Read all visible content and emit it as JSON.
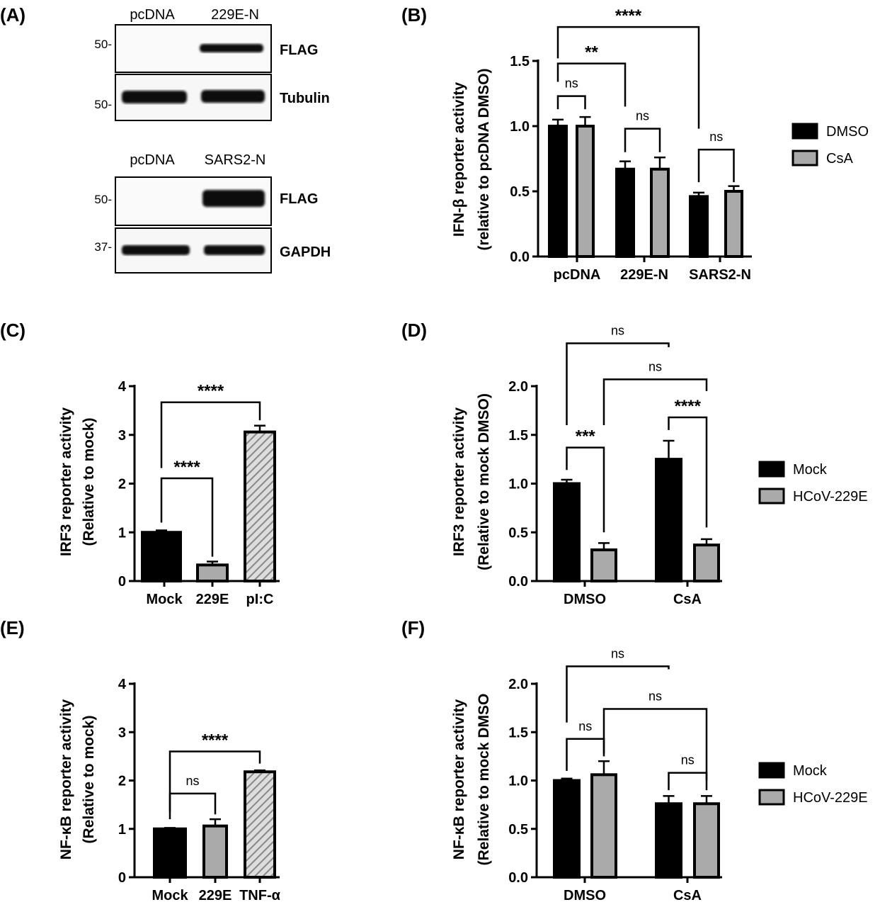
{
  "panel_labels": [
    "(A)",
    "(B)",
    "(C)",
    "(D)",
    "(E)",
    "(F)"
  ],
  "colors": {
    "black_bar": "#000000",
    "gray_bar": "#aaaaaa",
    "hatch": "#888888"
  },
  "western_blot": {
    "top": {
      "lanes": [
        "pcDNA",
        "229E-N"
      ],
      "markers": [
        "50-",
        "50-"
      ],
      "bands": [
        "FLAG",
        "Tubulin"
      ]
    },
    "bottom": {
      "lanes": [
        "pcDNA",
        "SARS2-N"
      ],
      "markers": [
        "50-",
        "37-"
      ],
      "bands": [
        "FLAG",
        "GAPDH"
      ]
    }
  },
  "chart_data": [
    {
      "id": "B",
      "type": "bar",
      "ylabel": [
        "IFN-β reporter activity",
        "(relative to pcDNA DMSO)"
      ],
      "ylim": [
        0,
        1.5
      ],
      "ticks": [
        "0.0",
        "0.5",
        "1.0",
        "1.5"
      ],
      "tick_values": [
        0,
        0.5,
        1.0,
        1.5
      ],
      "categories": [
        "pcDNA",
        "229E-N",
        "SARS2-N"
      ],
      "legend": [
        {
          "name": "DMSO",
          "color": "#000000"
        },
        {
          "name": "CsA",
          "color": "#aaaaaa"
        }
      ],
      "legend_placement": "right",
      "series": [
        {
          "name": "DMSO",
          "values": [
            1.0,
            0.67,
            0.46
          ],
          "errors": [
            0.05,
            0.06,
            0.03
          ]
        },
        {
          "name": "CsA",
          "values": [
            1.0,
            0.67,
            0.5
          ],
          "errors": [
            0.07,
            0.09,
            0.04
          ]
        }
      ],
      "brackets": [
        {
          "from": 0,
          "to": 1,
          "y": 1.23,
          "left": 1.13,
          "right": 1.13,
          "label": "ns"
        },
        {
          "from": 2,
          "to": 3,
          "y": 0.98,
          "left": 0.8,
          "right": 0.8,
          "label": "ns"
        },
        {
          "from": 4,
          "to": 5,
          "y": 0.82,
          "left": 0.57,
          "right": 0.57,
          "label": "ns"
        },
        {
          "from": 0,
          "to": 2,
          "y": 1.48,
          "left": 1.34,
          "right": 1.15,
          "label": "**"
        },
        {
          "from": 0,
          "to": 4,
          "y": 1.76,
          "left": 1.52,
          "right": 0.98,
          "label": "****"
        }
      ]
    },
    {
      "id": "C",
      "type": "bar",
      "ylabel": [
        "IRF3 reporter activity",
        "(Relative to mock)"
      ],
      "ylim": [
        0,
        4
      ],
      "ticks": [
        "0",
        "1",
        "2",
        "3",
        "4"
      ],
      "tick_values": [
        0,
        1,
        2,
        3,
        4
      ],
      "categories": [
        "Mock",
        "229E",
        "pI:C"
      ],
      "series": [
        {
          "values": [
            1.0,
            0.33,
            3.06
          ],
          "errors": [
            0.04,
            0.07,
            0.13
          ],
          "fills": [
            "black",
            "gray",
            "hatch"
          ]
        }
      ],
      "brackets": [
        {
          "from": 0,
          "to": 1,
          "y": 2.11,
          "left": 1.2,
          "right": 0.5,
          "label": "****"
        },
        {
          "from": 0,
          "to": 2,
          "y": 3.67,
          "left": 2.32,
          "right": 3.3,
          "label": "****"
        }
      ]
    },
    {
      "id": "D",
      "type": "bar",
      "ylabel": [
        "IRF3 reporter activity",
        "(Relative to mock DMSO)"
      ],
      "ylim": [
        0,
        2.0
      ],
      "ticks": [
        "0.0",
        "0.5",
        "1.0",
        "1.5",
        "2.0"
      ],
      "tick_values": [
        0,
        0.5,
        1.0,
        1.5,
        2.0
      ],
      "categories": [
        "DMSO",
        "CsA"
      ],
      "legend": [
        {
          "name": "Mock",
          "color": "#000000"
        },
        {
          "name": "HCoV-229E",
          "color": "#aaaaaa"
        }
      ],
      "legend_placement": "right",
      "series": [
        {
          "name": "Mock",
          "values": [
            1.0,
            1.25
          ],
          "errors": [
            0.04,
            0.19
          ]
        },
        {
          "name": "HCoV-229E",
          "values": [
            0.32,
            0.37
          ],
          "errors": [
            0.07,
            0.06
          ]
        }
      ],
      "brackets": [
        {
          "from": 0,
          "to": 1,
          "y": 1.37,
          "left": 1.14,
          "right": 0.5,
          "label": "***"
        },
        {
          "from": 2,
          "to": 3,
          "y": 1.68,
          "left": 1.55,
          "right": 0.55,
          "label": "****"
        },
        {
          "from": 0,
          "to": 2,
          "y": 2.44,
          "left": 1.6,
          "right": 2.4,
          "label": "ns"
        },
        {
          "from": 1,
          "to": 3,
          "y": 2.07,
          "left": 1.6,
          "right": 1.95,
          "label": "ns"
        }
      ]
    },
    {
      "id": "E",
      "type": "bar",
      "ylabel": [
        "NF-κB reporter activity",
        "(Relative to mock)"
      ],
      "ylim": [
        0,
        4
      ],
      "ticks": [
        "0",
        "1",
        "2",
        "3",
        "4"
      ],
      "tick_values": [
        0,
        1,
        2,
        3,
        4
      ],
      "categories": [
        "Mock",
        "229E",
        "TNF-α"
      ],
      "series": [
        {
          "values": [
            1.0,
            1.06,
            2.18
          ],
          "errors": [
            0.02,
            0.14,
            0.03
          ],
          "fills": [
            "black",
            "gray",
            "hatch"
          ]
        }
      ],
      "brackets": [
        {
          "from": 0,
          "to": 1,
          "y": 1.73,
          "left": 1.2,
          "right": 1.3,
          "label": "ns"
        },
        {
          "from": 0,
          "to": 2,
          "y": 2.6,
          "left": 1.35,
          "right": 2.35,
          "label": "****"
        }
      ]
    },
    {
      "id": "F",
      "type": "bar",
      "ylabel": [
        "NF-κB reporter activity",
        "(Relative to mock DMSO"
      ],
      "ylim": [
        0,
        2.0
      ],
      "ticks": [
        "0.0",
        "0.5",
        "1.0",
        "1.5",
        "2.0"
      ],
      "tick_values": [
        0,
        0.5,
        1.0,
        1.5,
        2.0
      ],
      "categories": [
        "DMSO",
        "CsA"
      ],
      "legend": [
        {
          "name": "Mock",
          "color": "#000000"
        },
        {
          "name": "HCoV-229E",
          "color": "#aaaaaa"
        }
      ],
      "legend_placement": "right",
      "series": [
        {
          "name": "Mock",
          "values": [
            1.0,
            0.76
          ],
          "errors": [
            0.02,
            0.08
          ]
        },
        {
          "name": "HCoV-229E",
          "values": [
            1.06,
            0.76
          ],
          "errors": [
            0.14,
            0.08
          ]
        }
      ],
      "brackets": [
        {
          "from": 0,
          "to": 1,
          "y": 1.43,
          "left": 1.1,
          "right": 1.25,
          "label": "ns"
        },
        {
          "from": 2,
          "to": 3,
          "y": 1.08,
          "left": 0.9,
          "right": 0.9,
          "label": "ns"
        },
        {
          "from": 0,
          "to": 2,
          "y": 2.18,
          "left": 1.6,
          "right": 2.15,
          "label": "ns"
        },
        {
          "from": 1,
          "to": 3,
          "y": 1.74,
          "left": 1.28,
          "right": 1.0,
          "label": "ns"
        }
      ]
    }
  ]
}
